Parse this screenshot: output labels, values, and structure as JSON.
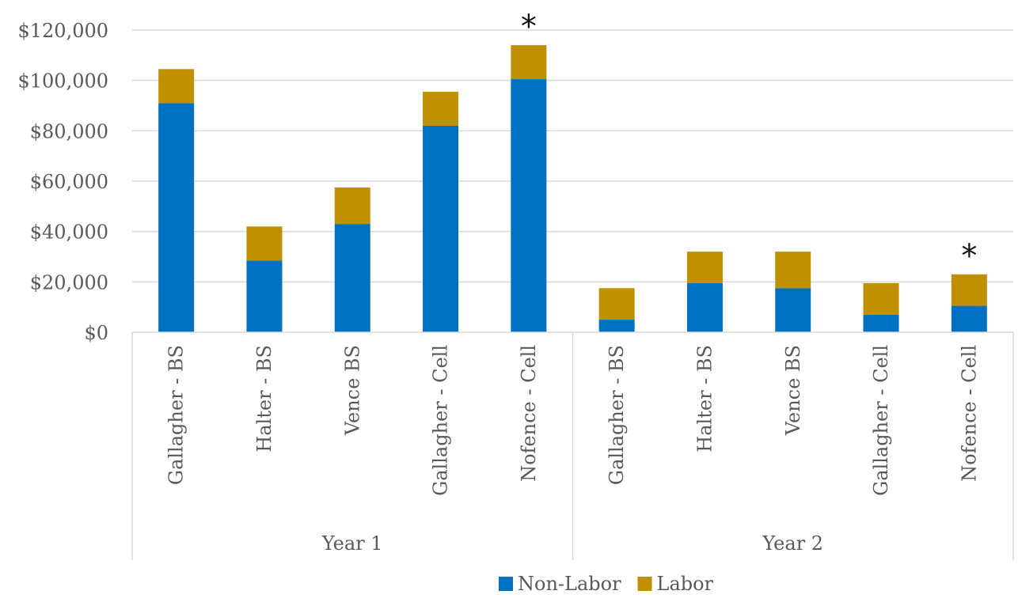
{
  "chart_data": {
    "type": "bar",
    "stacked": true,
    "ylim": [
      0,
      120000
    ],
    "yticks": [
      0,
      20000,
      40000,
      60000,
      80000,
      100000,
      120000
    ],
    "ytick_labels": [
      "$0",
      "$20,000",
      "$40,000",
      "$60,000",
      "$80,000",
      "$100,000",
      "$120,000"
    ],
    "grid": true,
    "legend_position": "bottom",
    "groups": [
      {
        "label": "Year 1",
        "categories": [
          "Gallagher - BS",
          "Halter - BS",
          "Vence BS",
          "Gallagher - Cell",
          "Nofence - Cell"
        ]
      },
      {
        "label": "Year 2",
        "categories": [
          "Gallagher - BS",
          "Halter - BS",
          "Vence BS",
          "Gallagher - Cell",
          "Nofence - Cell"
        ]
      }
    ],
    "series": [
      {
        "name": "Non-Labor",
        "color": "#0070C0",
        "values": [
          91000,
          28500,
          43000,
          82000,
          100500,
          5000,
          19500,
          17500,
          7000,
          10500
        ]
      },
      {
        "name": "Labor",
        "color": "#BF9000",
        "values": [
          13500,
          13500,
          14500,
          13500,
          13500,
          12500,
          12500,
          14500,
          12500,
          12500
        ]
      }
    ],
    "annotations": [
      {
        "text": "*",
        "category_index": 4
      },
      {
        "text": "*",
        "category_index": 9
      }
    ]
  }
}
